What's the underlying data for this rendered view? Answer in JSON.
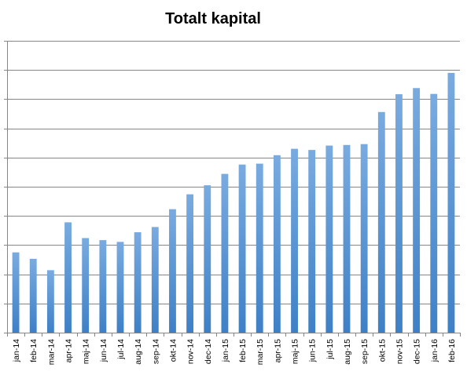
{
  "chart_data": {
    "type": "bar",
    "title": "Totalt kapital",
    "xlabel": "",
    "ylabel": "",
    "categories": [
      "jan-14",
      "feb-14",
      "mar-14",
      "apr-14",
      "maj-14",
      "jun-14",
      "jul-14",
      "aug-14",
      "sep-14",
      "okt-14",
      "nov-14",
      "dec-14",
      "jan-15",
      "feb-15",
      "mar-15",
      "apr-15",
      "maj-15",
      "jun-15",
      "jul-15",
      "aug-15",
      "sep-15",
      "okt-15",
      "nov-15",
      "dec-15",
      "jan-16",
      "feb-16"
    ],
    "values": [
      2.75,
      2.53,
      2.14,
      3.78,
      3.24,
      3.17,
      3.11,
      3.44,
      3.62,
      4.23,
      4.74,
      5.05,
      5.44,
      5.76,
      5.79,
      6.08,
      6.3,
      6.26,
      6.41,
      6.43,
      6.46,
      7.56,
      8.17,
      8.38,
      8.18,
      8.9
    ],
    "ylim": [
      0,
      10
    ],
    "y_tick_labels_shown": false,
    "grid": true,
    "legend": "none",
    "colors": {
      "bar_top": "#79abe0",
      "bar_bottom": "#3e80c6",
      "gridline": "#868686"
    }
  }
}
